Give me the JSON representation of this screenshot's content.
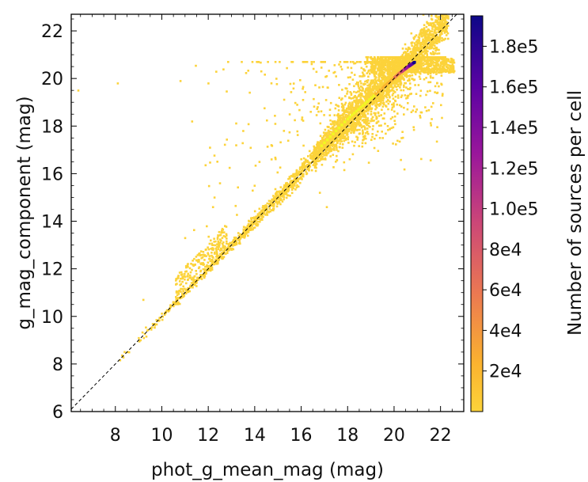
{
  "chart_data": {
    "type": "heatmap",
    "title": "",
    "xlabel": "phot_g_mean_mag (mag)",
    "ylabel": "g_mag_component (mag)",
    "xlim": [
      6.1,
      23.0
    ],
    "ylim": [
      6.0,
      22.7
    ],
    "xticks": [
      8,
      10,
      12,
      14,
      16,
      18,
      20,
      22
    ],
    "yticks": [
      6,
      8,
      10,
      12,
      14,
      16,
      18,
      20,
      22
    ],
    "x_minor_step": 0.5,
    "y_minor_step": 0.5,
    "reference_line": {
      "style": "dashed",
      "color": "#000000",
      "description": "y = x"
    },
    "colorbar": {
      "label": "Number of sources per cell",
      "range": [
        0,
        195000
      ],
      "ticks": [
        20000,
        40000,
        60000,
        80000,
        100000,
        120000,
        140000,
        160000,
        180000
      ],
      "tick_labels": [
        "2e4",
        "4e4",
        "6e4",
        "8e4",
        "1.0e5",
        "1.2e5",
        "1.4e5",
        "1.6e5",
        "1.8e5"
      ],
      "colormap": [
        "#0d0887",
        "#5b02a3",
        "#9a179b",
        "#cb4678",
        "#eb7852",
        "#fbb32f",
        "#f0f921"
      ],
      "colormap_low_color": "#fcd33a"
    },
    "density_ridge": [
      {
        "x": 8.0,
        "y": 7.8,
        "count": 5
      },
      {
        "x": 10.0,
        "y": 10.0,
        "count": 30
      },
      {
        "x": 12.0,
        "y": 12.3,
        "count": 200
      },
      {
        "x": 14.0,
        "y": 14.0,
        "count": 400
      },
      {
        "x": 16.0,
        "y": 16.3,
        "count": 1500
      },
      {
        "x": 18.0,
        "y": 18.3,
        "count": 5000
      },
      {
        "x": 19.5,
        "y": 19.6,
        "count": 20000
      },
      {
        "x": 20.2,
        "y": 20.2,
        "count": 60000
      },
      {
        "x": 20.6,
        "y": 20.5,
        "count": 140000
      },
      {
        "x": 20.9,
        "y": 20.7,
        "count": 190000
      }
    ]
  }
}
